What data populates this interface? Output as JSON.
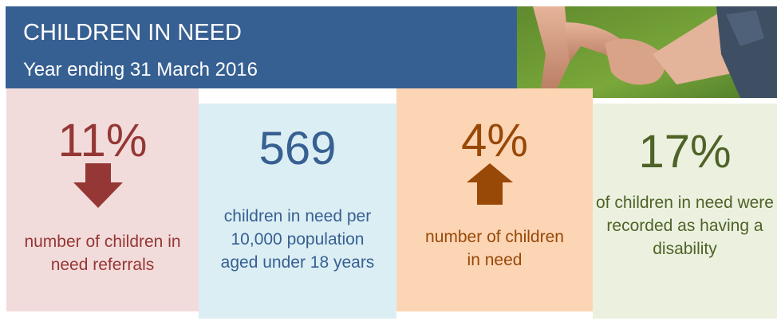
{
  "header": {
    "title": "CHILDREN IN NEED",
    "subtitle": "Year ending 31 March 2016"
  },
  "colors": {
    "header_bg": "#376092",
    "card1_bg": "#f2dcdb",
    "card1_text": "#953735",
    "card2_bg": "#dbeef4",
    "card2_text": "#376092",
    "card3_bg": "#fcd5b5",
    "card3_text": "#984807",
    "card4_bg": "#ebf1de",
    "card4_text": "#4f6228"
  },
  "cards": [
    {
      "value": "11%",
      "icon": "arrow-down-icon",
      "description": "number of children in need referrals"
    },
    {
      "value": "569",
      "icon": "",
      "description": "children in need per 10,000 population aged under 18 years"
    },
    {
      "value": "4%",
      "icon": "arrow-up-icon",
      "description": "number of children in need"
    },
    {
      "value": "17%",
      "icon": "",
      "description": "of children in need were recorded as having a disability"
    }
  ],
  "photo": {
    "icon": "holding-hands-photo"
  }
}
